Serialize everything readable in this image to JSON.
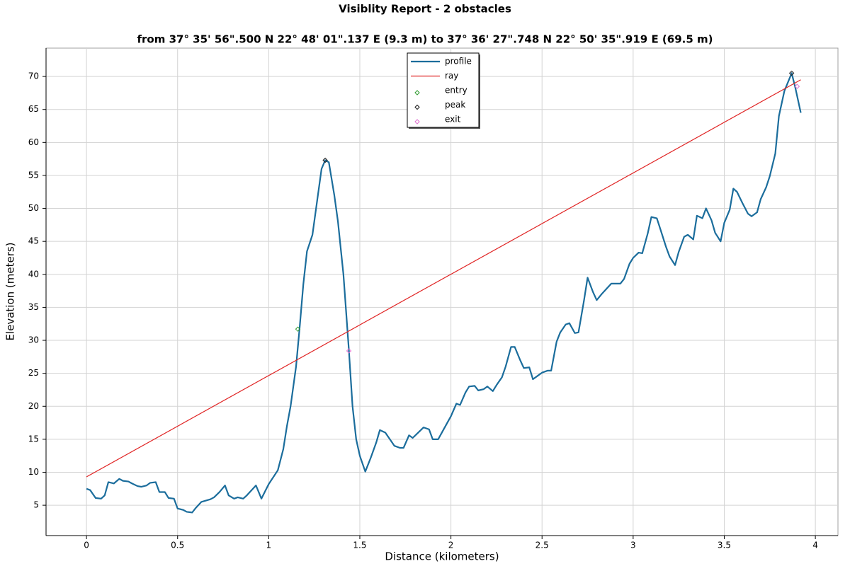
{
  "chart_data": {
    "type": "line",
    "title": "Visiblity Report - 2 obstacles",
    "subtitle": "from 37° 35' 56\".500 N 22° 48' 01\".137 E (9.3 m) to 37° 36' 27\".748 N 22° 50' 35\".919 E (69.5 m)",
    "x_label": "Distance (kilometers)",
    "y_label": "Elevation (meters)",
    "xlim": [
      -0.222,
      4.124
    ],
    "ylim": [
      0.4,
      74.3
    ],
    "xticks": [
      0,
      0.5,
      1,
      1.5,
      2,
      2.5,
      3,
      3.5,
      4
    ],
    "yticks": [
      5,
      10,
      15,
      20,
      25,
      30,
      35,
      40,
      45,
      50,
      55,
      60,
      65,
      70
    ],
    "grid": true,
    "legend": "top",
    "series": [
      {
        "name": "profile",
        "type": "line",
        "color": "#1b6d9c",
        "x": [
          0,
          0.02,
          0.05,
          0.08,
          0.1,
          0.12,
          0.15,
          0.18,
          0.2,
          0.23,
          0.25,
          0.28,
          0.3,
          0.33,
          0.35,
          0.38,
          0.4,
          0.43,
          0.45,
          0.48,
          0.5,
          0.53,
          0.55,
          0.58,
          0.6,
          0.63,
          0.68,
          0.7,
          0.73,
          0.76,
          0.78,
          0.81,
          0.83,
          0.86,
          0.88,
          0.93,
          0.96,
          1.0,
          1.05,
          1.08,
          1.1,
          1.12,
          1.15,
          1.17,
          1.19,
          1.21,
          1.24,
          1.27,
          1.29,
          1.31,
          1.33,
          1.36,
          1.38,
          1.41,
          1.44,
          1.46,
          1.48,
          1.5,
          1.53,
          1.56,
          1.59,
          1.61,
          1.64,
          1.66,
          1.69,
          1.72,
          1.74,
          1.77,
          1.79,
          1.82,
          1.85,
          1.88,
          1.9,
          1.93,
          1.95,
          1.98,
          2.0,
          2.03,
          2.05,
          2.08,
          2.1,
          2.13,
          2.15,
          2.18,
          2.2,
          2.23,
          2.25,
          2.28,
          2.3,
          2.33,
          2.35,
          2.38,
          2.4,
          2.43,
          2.45,
          2.48,
          2.5,
          2.53,
          2.55,
          2.58,
          2.6,
          2.63,
          2.65,
          2.68,
          2.7,
          2.73,
          2.75,
          2.78,
          2.8,
          2.83,
          2.85,
          2.88,
          2.9,
          2.93,
          2.95,
          2.98,
          3.0,
          3.03,
          3.05,
          3.08,
          3.1,
          3.13,
          3.15,
          3.18,
          3.2,
          3.23,
          3.25,
          3.28,
          3.3,
          3.33,
          3.35,
          3.38,
          3.4,
          3.43,
          3.45,
          3.48,
          3.5,
          3.53,
          3.55,
          3.57,
          3.6,
          3.63,
          3.65,
          3.68,
          3.7,
          3.73,
          3.75,
          3.78,
          3.8,
          3.83,
          3.87,
          3.89,
          3.92
        ],
        "values": [
          7.5,
          7.3,
          6.1,
          6.0,
          6.5,
          8.5,
          8.3,
          9.0,
          8.7,
          8.6,
          8.3,
          7.9,
          7.8,
          8.0,
          8.4,
          8.5,
          7.0,
          7.0,
          6.1,
          6.0,
          4.5,
          4.3,
          4.0,
          3.9,
          4.6,
          5.5,
          5.9,
          6.2,
          7.0,
          8.0,
          6.5,
          6.0,
          6.2,
          6.0,
          6.5,
          8.0,
          6.0,
          8.2,
          10.3,
          13.5,
          17,
          20,
          26,
          32,
          38.5,
          43.5,
          46,
          52,
          56,
          57.3,
          57.0,
          52,
          48,
          40,
          28.5,
          20,
          15,
          12.5,
          10.1,
          12.2,
          14.5,
          16.4,
          16,
          15.2,
          14,
          13.7,
          13.7,
          15.6,
          15.2,
          16.0,
          16.8,
          16.5,
          15,
          15,
          16,
          17.5,
          18.5,
          20.4,
          20.2,
          22.1,
          23,
          23.1,
          22.4,
          22.6,
          23.0,
          22.3,
          23.2,
          24.4,
          26,
          29,
          29,
          27,
          25.8,
          25.9,
          24.1,
          24.7,
          25.1,
          25.4,
          25.4,
          29.8,
          31.2,
          32.4,
          32.6,
          31.1,
          31.2,
          36,
          39.5,
          37.3,
          36.1,
          37.1,
          37.7,
          38.6,
          38.6,
          38.6,
          39.3,
          41.6,
          42.5,
          43.3,
          43.2,
          46.2,
          48.7,
          48.5,
          46.8,
          44.2,
          42.7,
          41.4,
          43.4,
          45.7,
          46,
          45.3,
          48.9,
          48.5,
          50,
          48.2,
          46.3,
          45,
          47.8,
          49.8,
          53,
          52.5,
          50.8,
          49.2,
          48.8,
          49.4,
          51.4,
          53.2,
          54.9,
          58.3,
          64,
          67.8,
          70.5,
          68.3,
          64.5
        ]
      },
      {
        "name": "ray",
        "type": "line",
        "color": "#e02424",
        "x": [
          0,
          3.92
        ],
        "values": [
          9.3,
          69.5
        ]
      },
      {
        "name": "entry",
        "type": "scatter",
        "color": "#2e9a2e",
        "x": [
          1.16
        ],
        "values": [
          31.7
        ]
      },
      {
        "name": "peak",
        "type": "scatter",
        "color": "#1a1a1a",
        "x": [
          1.31,
          3.87
        ],
        "values": [
          57.3,
          70.5
        ]
      },
      {
        "name": "exit",
        "type": "scatter",
        "color": "#e070d0",
        "x": [
          1.44,
          3.9
        ],
        "values": [
          28.4,
          68.5
        ]
      }
    ]
  }
}
